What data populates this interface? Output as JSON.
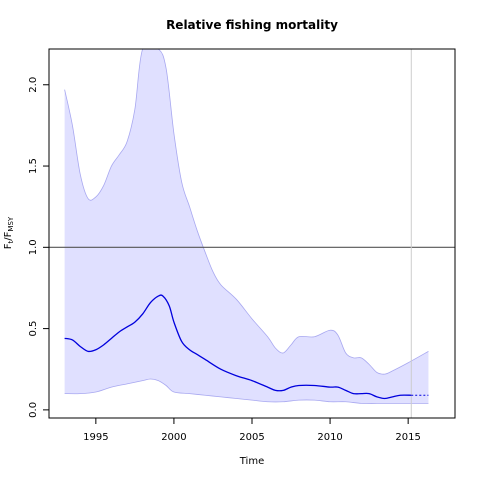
{
  "chart_data": {
    "type": "line",
    "title": "Relative fishing mortality",
    "xlabel": "Time",
    "ylabel": {
      "main": "F",
      "sub1": "t",
      "sep": "/F",
      "sub2": "MSY"
    },
    "xlim": [
      1992,
      2018
    ],
    "ylim": [
      -0.05,
      2.22
    ],
    "xticks": [
      1995,
      2000,
      2005,
      2010,
      2015
    ],
    "yticks": [
      0.0,
      0.5,
      1.0,
      1.5,
      2.0
    ],
    "ytick_labels": [
      "0.0",
      "0.5",
      "1.0",
      "1.5",
      "2.0"
    ],
    "reference_line_y": 1.0,
    "last_data_year": 2015.2,
    "ci_upper": [
      [
        1993.0,
        1.97
      ],
      [
        1993.5,
        1.75
      ],
      [
        1994.0,
        1.45
      ],
      [
        1994.5,
        1.3
      ],
      [
        1995.0,
        1.31
      ],
      [
        1995.5,
        1.38
      ],
      [
        1996.0,
        1.5
      ],
      [
        1996.5,
        1.57
      ],
      [
        1997.0,
        1.65
      ],
      [
        1997.5,
        1.85
      ],
      [
        1998.0,
        2.22
      ],
      [
        1999.0,
        2.22
      ],
      [
        1999.5,
        2.1
      ],
      [
        2000.0,
        1.7
      ],
      [
        2000.5,
        1.4
      ],
      [
        2001.0,
        1.25
      ],
      [
        2001.5,
        1.1
      ],
      [
        2002.0,
        0.97
      ],
      [
        2002.5,
        0.85
      ],
      [
        2003.0,
        0.77
      ],
      [
        2004.0,
        0.68
      ],
      [
        2005.0,
        0.56
      ],
      [
        2006.0,
        0.45
      ],
      [
        2006.5,
        0.38
      ],
      [
        2007.0,
        0.35
      ],
      [
        2007.5,
        0.4
      ],
      [
        2008.0,
        0.45
      ],
      [
        2009.0,
        0.45
      ],
      [
        2010.0,
        0.49
      ],
      [
        2010.5,
        0.46
      ],
      [
        2011.0,
        0.35
      ],
      [
        2011.5,
        0.32
      ],
      [
        2012.0,
        0.32
      ],
      [
        2012.5,
        0.28
      ],
      [
        2013.0,
        0.23
      ],
      [
        2013.5,
        0.22
      ],
      [
        2014.0,
        0.24
      ],
      [
        2015.0,
        0.29
      ],
      [
        2016.3,
        0.36
      ]
    ],
    "ci_lower": [
      [
        1993.0,
        0.1
      ],
      [
        1994.0,
        0.1
      ],
      [
        1995.0,
        0.11
      ],
      [
        1996.0,
        0.14
      ],
      [
        1997.0,
        0.16
      ],
      [
        1998.0,
        0.18
      ],
      [
        1998.5,
        0.19
      ],
      [
        1999.0,
        0.18
      ],
      [
        1999.5,
        0.15
      ],
      [
        2000.0,
        0.11
      ],
      [
        2001.0,
        0.1
      ],
      [
        2002.0,
        0.09
      ],
      [
        2003.0,
        0.08
      ],
      [
        2004.0,
        0.07
      ],
      [
        2005.0,
        0.06
      ],
      [
        2006.0,
        0.05
      ],
      [
        2007.0,
        0.05
      ],
      [
        2008.0,
        0.06
      ],
      [
        2009.0,
        0.06
      ],
      [
        2010.0,
        0.05
      ],
      [
        2011.0,
        0.05
      ],
      [
        2012.0,
        0.04
      ],
      [
        2013.0,
        0.04
      ],
      [
        2014.0,
        0.04
      ],
      [
        2015.0,
        0.04
      ],
      [
        2016.3,
        0.04
      ]
    ],
    "estimate": [
      [
        1993.0,
        0.44
      ],
      [
        1993.5,
        0.43
      ],
      [
        1994.0,
        0.39
      ],
      [
        1994.5,
        0.36
      ],
      [
        1995.0,
        0.37
      ],
      [
        1995.5,
        0.4
      ],
      [
        1996.0,
        0.44
      ],
      [
        1996.5,
        0.48
      ],
      [
        1997.0,
        0.51
      ],
      [
        1997.5,
        0.54
      ],
      [
        1998.0,
        0.59
      ],
      [
        1998.5,
        0.66
      ],
      [
        1999.0,
        0.7
      ],
      [
        1999.3,
        0.7
      ],
      [
        1999.7,
        0.64
      ],
      [
        2000.0,
        0.54
      ],
      [
        2000.5,
        0.42
      ],
      [
        2001.0,
        0.37
      ],
      [
        2001.5,
        0.34
      ],
      [
        2002.0,
        0.31
      ],
      [
        2003.0,
        0.25
      ],
      [
        2004.0,
        0.21
      ],
      [
        2005.0,
        0.18
      ],
      [
        2006.0,
        0.14
      ],
      [
        2006.5,
        0.12
      ],
      [
        2007.0,
        0.12
      ],
      [
        2007.5,
        0.14
      ],
      [
        2008.0,
        0.15
      ],
      [
        2009.0,
        0.15
      ],
      [
        2010.0,
        0.14
      ],
      [
        2010.5,
        0.14
      ],
      [
        2011.0,
        0.12
      ],
      [
        2011.5,
        0.1
      ],
      [
        2012.0,
        0.1
      ],
      [
        2012.5,
        0.1
      ],
      [
        2013.0,
        0.08
      ],
      [
        2013.5,
        0.07
      ],
      [
        2014.0,
        0.08
      ],
      [
        2014.5,
        0.09
      ],
      [
        2015.2,
        0.09
      ]
    ],
    "projection": [
      [
        2015.2,
        0.09
      ],
      [
        2016.3,
        0.09
      ]
    ],
    "colors": {
      "ci_fill": "#e0e0ff",
      "ci_border": "#a8a8f0",
      "estimate": "#0000dd",
      "reference": "#555555",
      "vline": "#cccccc"
    }
  }
}
